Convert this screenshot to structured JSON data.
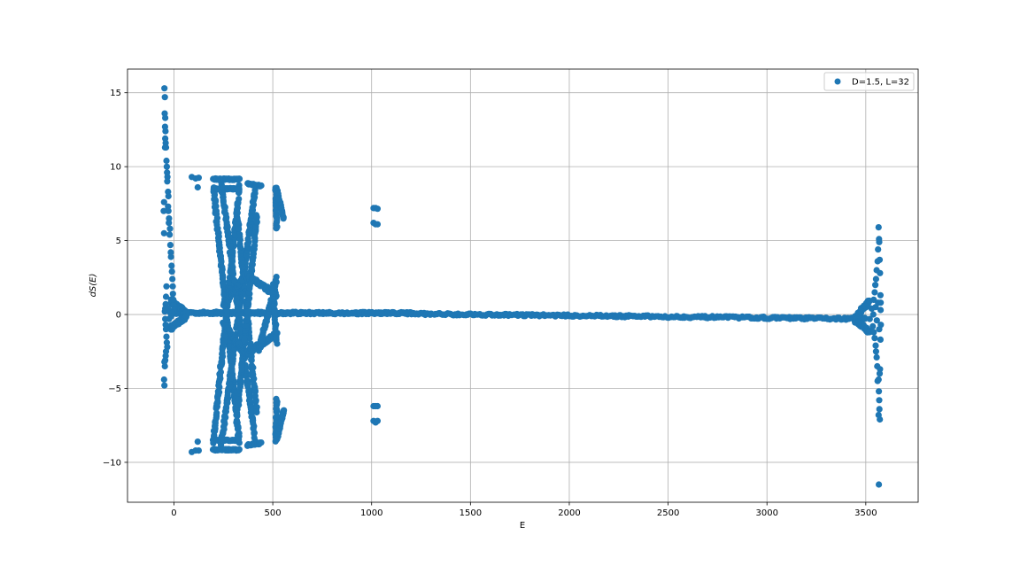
{
  "chart_data": {
    "type": "scatter",
    "xlabel": "E",
    "ylabel": "dS(E)",
    "xlim": [
      -235,
      3765
    ],
    "ylim": [
      -12.7,
      16.6
    ],
    "xticks": [
      0,
      500,
      1000,
      1500,
      2000,
      2500,
      3000,
      3500
    ],
    "yticks": [
      -10,
      -5,
      0,
      5,
      10,
      15
    ],
    "xtick_labels": [
      "0",
      "500",
      "1000",
      "1500",
      "2000",
      "2500",
      "3000",
      "3500"
    ],
    "ytick_labels": [
      "−10",
      "−5",
      "0",
      "5",
      "10",
      "15"
    ],
    "grid": true,
    "legend_position": "top-right",
    "marker_color": "#1f77b4",
    "series": [
      {
        "name": "D=1.5, L=32",
        "points": [
          [
            -48,
            15.3
          ],
          [
            -46,
            14.7
          ],
          [
            -47,
            13.6
          ],
          [
            -44,
            13.3
          ],
          [
            -45,
            12.7
          ],
          [
            -43,
            12.4
          ],
          [
            -44,
            11.9
          ],
          [
            -42,
            11.6
          ],
          [
            -45,
            11.3
          ],
          [
            -40,
            11.3
          ],
          [
            -38,
            10.4
          ],
          [
            -36,
            10.0
          ],
          [
            -35,
            9.6
          ],
          [
            -33,
            9.3
          ],
          [
            -34,
            9.0
          ],
          [
            -30,
            8.3
          ],
          [
            -28,
            8.0
          ],
          [
            -50,
            7.6
          ],
          [
            -30,
            7.3
          ],
          [
            -28,
            7.0
          ],
          [
            -52,
            7.0
          ],
          [
            -25,
            6.5
          ],
          [
            -26,
            6.2
          ],
          [
            -20,
            5.8
          ],
          [
            -50,
            5.5
          ],
          [
            -22,
            5.4
          ],
          [
            -18,
            4.7
          ],
          [
            -16,
            4.2
          ],
          [
            -15,
            3.9
          ],
          [
            -12,
            3.3
          ],
          [
            -10,
            2.9
          ],
          [
            -8,
            2.4
          ],
          [
            -6,
            1.9
          ],
          [
            -38,
            1.9
          ],
          [
            -5,
            1.4
          ],
          [
            -40,
            1.2
          ],
          [
            -3,
            1.0
          ],
          [
            -42,
            0.7
          ],
          [
            -2,
            0.6
          ],
          [
            -44,
            0.4
          ],
          [
            -46,
            0.2
          ],
          [
            -1,
            0.3
          ],
          [
            -44,
            -0.3
          ],
          [
            -42,
            -0.7
          ],
          [
            -40,
            -1.0
          ],
          [
            -38,
            -1.5
          ],
          [
            -36,
            -1.9
          ],
          [
            -34,
            -2.2
          ],
          [
            -40,
            -2.5
          ],
          [
            -42,
            -2.8
          ],
          [
            -44,
            -3.1
          ],
          [
            -46,
            -3.5
          ],
          [
            -48,
            -3.2
          ],
          [
            -50,
            -4.4
          ],
          [
            -48,
            -4.8
          ],
          [
            -30,
            0.4
          ],
          [
            -20,
            0.2
          ],
          [
            -10,
            0.1
          ],
          [
            -25,
            -0.3
          ],
          [
            -15,
            -0.15
          ],
          [
            90,
            9.3
          ],
          [
            110,
            9.2
          ],
          [
            125,
            9.25
          ],
          [
            120,
            8.6
          ],
          [
            90,
            -9.3
          ],
          [
            110,
            -9.2
          ],
          [
            125,
            -9.2
          ],
          [
            120,
            -8.6
          ],
          [
            1010,
            7.2
          ],
          [
            1020,
            7.2
          ],
          [
            1030,
            7.15
          ],
          [
            1010,
            6.2
          ],
          [
            1020,
            6.1
          ],
          [
            1030,
            6.1
          ],
          [
            1010,
            -7.2
          ],
          [
            1020,
            -7.3
          ],
          [
            1030,
            -7.2
          ],
          [
            1010,
            -6.2
          ],
          [
            1020,
            -6.2
          ],
          [
            1030,
            -6.2
          ],
          [
            1005,
            0.1
          ],
          [
            1030,
            0.1
          ],
          [
            1050,
            0.1
          ],
          [
            3520,
            -0.3
          ],
          [
            3530,
            0.4
          ],
          [
            3535,
            -0.8
          ],
          [
            3540,
            1.0
          ],
          [
            3540,
            -1.2
          ],
          [
            3545,
            1.5
          ],
          [
            3545,
            -1.6
          ],
          [
            3548,
            2.0
          ],
          [
            3550,
            -2.1
          ],
          [
            3552,
            2.4
          ],
          [
            3552,
            -2.5
          ],
          [
            3555,
            3.0
          ],
          [
            3555,
            -2.9
          ],
          [
            3558,
            -3.5
          ],
          [
            3560,
            3.6
          ],
          [
            3560,
            -4.5
          ],
          [
            3562,
            4.4
          ],
          [
            3565,
            -4.4
          ],
          [
            3565,
            5.9
          ],
          [
            3566,
            -5.2
          ],
          [
            3567,
            5.1
          ],
          [
            3568,
            4.9
          ],
          [
            3568,
            -5.8
          ],
          [
            3569,
            -6.4
          ],
          [
            3565,
            -6.8
          ],
          [
            3570,
            3.7
          ],
          [
            3572,
            2.8
          ],
          [
            3574,
            1.3
          ],
          [
            3575,
            0.8
          ],
          [
            3576,
            -0.7
          ],
          [
            3574,
            -1.7
          ],
          [
            3572,
            -3.7
          ],
          [
            3570,
            -4.0
          ],
          [
            3571,
            -7.1
          ],
          [
            3566,
            -11.5
          ],
          [
            3538,
            0.0
          ],
          [
            3550,
            0.5
          ],
          [
            3556,
            -0.4
          ],
          [
            3562,
            0.8
          ],
          [
            3568,
            -1.0
          ],
          [
            3575,
            0.3
          ]
        ],
        "bands": [
          {
            "x0": -20,
            "x1": 1200,
            "y0": 0.12,
            "y1": 0.08,
            "width": 0.16,
            "n": 300
          },
          {
            "x0": 1200,
            "x1": 3500,
            "y0": 0.05,
            "y1": -0.3,
            "width": 0.14,
            "n": 320
          },
          {
            "x0": -15,
            "x1": 60,
            "y0": 0.9,
            "y1": 0.15,
            "width": 0.3,
            "n": 50
          },
          {
            "x0": -15,
            "x1": 60,
            "y0": -0.9,
            "y1": -0.15,
            "width": 0.3,
            "n": 50
          },
          {
            "x0": 3440,
            "x1": 3520,
            "y0": -0.3,
            "y1": 0.9,
            "width": 0.3,
            "n": 40
          },
          {
            "x0": 3440,
            "x1": 3520,
            "y0": -0.3,
            "y1": -1.2,
            "width": 0.3,
            "n": 40
          },
          {
            "x0": 200,
            "x1": 330,
            "y0": 8.6,
            "y1": -8.6,
            "width": 0.5,
            "n": 180
          },
          {
            "x0": 200,
            "x1": 330,
            "y0": -8.6,
            "y1": 8.6,
            "width": 0.5,
            "n": 180
          },
          {
            "x0": 240,
            "x1": 410,
            "y0": -8.8,
            "y1": 8.4,
            "width": 0.4,
            "n": 170
          },
          {
            "x0": 240,
            "x1": 410,
            "y0": 8.8,
            "y1": -8.4,
            "width": 0.4,
            "n": 170
          },
          {
            "x0": 320,
            "x1": 420,
            "y0": 6.7,
            "y1": -6.7,
            "width": 0.4,
            "n": 110
          },
          {
            "x0": 320,
            "x1": 420,
            "y0": -6.7,
            "y1": 6.7,
            "width": 0.4,
            "n": 110
          },
          {
            "x0": 250,
            "x1": 360,
            "y0": 0.6,
            "y1": 2.7,
            "width": 0.3,
            "n": 60
          },
          {
            "x0": 360,
            "x1": 520,
            "y0": 2.7,
            "y1": 1.3,
            "width": 0.3,
            "n": 80
          },
          {
            "x0": 250,
            "x1": 360,
            "y0": -0.6,
            "y1": -2.7,
            "width": 0.3,
            "n": 60
          },
          {
            "x0": 360,
            "x1": 520,
            "y0": -2.7,
            "y1": -1.3,
            "width": 0.3,
            "n": 80
          },
          {
            "x0": 430,
            "x1": 520,
            "y0": -2.4,
            "y1": 2.4,
            "width": 0.3,
            "n": 60
          },
          {
            "x0": 200,
            "x1": 330,
            "y0": 9.15,
            "y1": 9.15,
            "width": 0.1,
            "n": 50
          },
          {
            "x0": 200,
            "x1": 330,
            "y0": -9.15,
            "y1": -9.15,
            "width": 0.1,
            "n": 50
          },
          {
            "x0": 200,
            "x1": 330,
            "y0": 8.5,
            "y1": 8.5,
            "width": 0.1,
            "n": 40
          },
          {
            "x0": 200,
            "x1": 330,
            "y0": -8.5,
            "y1": -8.5,
            "width": 0.1,
            "n": 40
          },
          {
            "x0": 370,
            "x1": 440,
            "y0": 8.85,
            "y1": 8.7,
            "width": 0.1,
            "n": 25
          },
          {
            "x0": 370,
            "x1": 440,
            "y0": -8.85,
            "y1": -8.7,
            "width": 0.1,
            "n": 25
          },
          {
            "x0": 515,
            "x1": 520,
            "y0": 8.6,
            "y1": 5.8,
            "width": 0.2,
            "n": 30
          },
          {
            "x0": 515,
            "x1": 520,
            "y0": -8.6,
            "y1": -5.8,
            "width": 0.2,
            "n": 30
          },
          {
            "x0": 520,
            "x1": 555,
            "y0": 8.5,
            "y1": 6.5,
            "width": 0.2,
            "n": 30
          },
          {
            "x0": 520,
            "x1": 555,
            "y0": -8.5,
            "y1": -6.5,
            "width": 0.2,
            "n": 30
          },
          {
            "x0": 500,
            "x1": 520,
            "y0": 2.0,
            "y1": -2.0,
            "width": 0.2,
            "n": 30
          }
        ]
      }
    ]
  }
}
